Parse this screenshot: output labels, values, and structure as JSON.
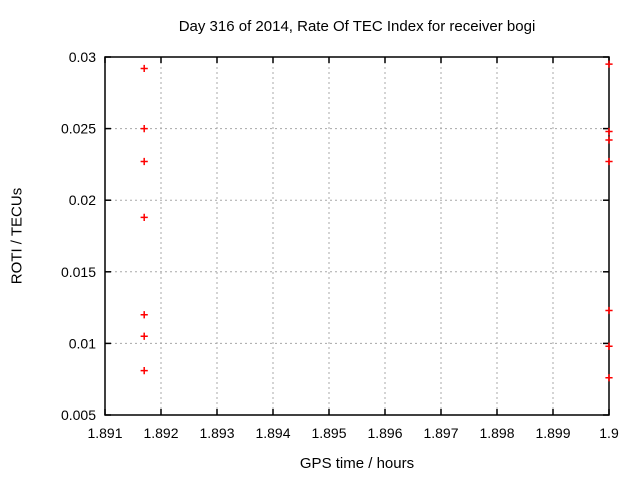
{
  "chart_data": {
    "type": "scatter",
    "title": "Day 316 of 2014, Rate Of TEC Index for receiver bogi",
    "xlabel": "GPS time / hours",
    "ylabel": "ROTI / TECUs",
    "xlim": [
      1.891,
      1.9
    ],
    "ylim": [
      0.005,
      0.03
    ],
    "x_tick_values": [
      1.891,
      1.892,
      1.893,
      1.894,
      1.895,
      1.896,
      1.897,
      1.898,
      1.899,
      1.9
    ],
    "x_tick_labels": [
      "1.891",
      "1.892",
      "1.893",
      "1.894",
      "1.895",
      "1.896",
      "1.897",
      "1.898",
      "1.899",
      "1.9"
    ],
    "y_tick_values": [
      0.005,
      0.01,
      0.015,
      0.02,
      0.025,
      0.03
    ],
    "y_tick_labels": [
      "0.005",
      "0.01",
      "0.015",
      "0.02",
      "0.025",
      "0.03"
    ],
    "grid": "dotted",
    "legend_position": "none",
    "marker": "plus",
    "series": [
      {
        "name": "ROTI",
        "color": "#ff0000",
        "points": [
          [
            1.8917,
            0.0292
          ],
          [
            1.8917,
            0.025
          ],
          [
            1.8917,
            0.0227
          ],
          [
            1.8917,
            0.0188
          ],
          [
            1.8917,
            0.012
          ],
          [
            1.8917,
            0.0105
          ],
          [
            1.8917,
            0.0081
          ],
          [
            1.9,
            0.0295
          ],
          [
            1.9,
            0.0248
          ],
          [
            1.9,
            0.0242
          ],
          [
            1.9,
            0.0227
          ],
          [
            1.9,
            0.0123
          ],
          [
            1.9,
            0.0098
          ],
          [
            1.9,
            0.0076
          ]
        ]
      }
    ],
    "colors": {
      "background": "#ffffff",
      "frame": "#000000",
      "grid": "#a8a8a8",
      "text": "#000000",
      "marker": "#ff0000"
    }
  }
}
